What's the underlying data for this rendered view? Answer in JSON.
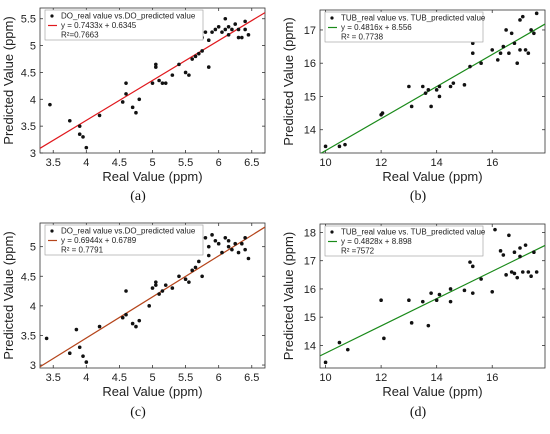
{
  "chart_data": [
    {
      "type": "scatter",
      "panel_label": "(a)",
      "xlabel": "Real Value (ppm)",
      "ylabel": "Predicted Value (ppm)",
      "xlim": [
        3.3,
        6.7
      ],
      "ylim": [
        3,
        5.7
      ],
      "xticks": [
        3.5,
        4,
        4.5,
        5,
        5.5,
        6,
        6.5
      ],
      "yticks": [
        3,
        3.5,
        4,
        4.5,
        5,
        5.5
      ],
      "legend_location": "top-left",
      "legend": [
        "DO_real value vs.DO_predicted value",
        "y = 0.7433x + 0.6345",
        "R²=0.7663"
      ],
      "fit": {
        "slope": 0.7433,
        "intercept": 0.6345,
        "color": "#e0191e"
      },
      "series": [
        {
          "x": [
            3.45,
            3.75,
            3.9,
            3.9,
            3.95,
            4.0,
            4.2,
            4.55,
            4.6,
            4.6,
            4.7,
            4.75,
            4.8,
            5.0,
            5.05,
            5.05,
            5.1,
            5.15,
            5.2,
            5.3,
            5.4,
            5.5,
            5.55,
            5.6,
            5.65,
            5.7,
            5.75,
            5.75,
            5.8,
            5.85,
            5.85,
            5.9,
            5.95,
            6.0,
            6.05,
            6.1,
            6.1,
            6.15,
            6.15,
            6.2,
            6.25,
            6.3,
            6.3,
            6.35,
            6.4,
            6.4,
            6.45
          ],
          "y": [
            3.9,
            3.6,
            3.5,
            3.35,
            3.3,
            3.1,
            3.7,
            3.95,
            4.1,
            4.3,
            3.85,
            3.75,
            4.0,
            4.3,
            4.65,
            4.6,
            4.35,
            4.3,
            4.3,
            4.45,
            4.65,
            4.5,
            4.45,
            4.75,
            4.8,
            4.85,
            4.9,
            5.15,
            5.25,
            5.1,
            4.6,
            5.25,
            5.3,
            5.35,
            5.25,
            5.3,
            5.5,
            5.2,
            5.35,
            5.3,
            5.4,
            5.15,
            5.3,
            5.15,
            5.3,
            5.45,
            5.2
          ]
        }
      ]
    },
    {
      "type": "scatter",
      "panel_label": "(b)",
      "xlabel": "Real Value (ppm)",
      "ylabel": "Predicted Value (ppm)",
      "xlim": [
        9.8,
        17.9
      ],
      "ylim": [
        13.3,
        17.6
      ],
      "xticks": [
        10,
        12,
        14,
        16
      ],
      "yticks": [
        14,
        15,
        16,
        17
      ],
      "legend_location": "top-left",
      "legend": [
        "TUB_real value vs. TUB_predicted value",
        "y = 0.4816x + 8.556",
        "R² = 0.7738"
      ],
      "fit": {
        "slope": 0.4816,
        "intercept": 8.556,
        "color": "#1a8a1a"
      },
      "series": [
        {
          "x": [
            10.0,
            10.5,
            10.7,
            12.0,
            12.05,
            13.0,
            13.1,
            13.5,
            13.6,
            13.7,
            13.8,
            14.0,
            14.1,
            14.1,
            14.5,
            14.6,
            15.0,
            15.2,
            15.3,
            15.3,
            15.6,
            16.0,
            16.2,
            16.3,
            16.4,
            16.5,
            16.6,
            16.7,
            16.8,
            16.9,
            17.0,
            17.0,
            17.1,
            17.2,
            17.3,
            17.4,
            17.5,
            17.6
          ],
          "y": [
            13.5,
            13.5,
            13.55,
            14.45,
            14.5,
            15.3,
            14.7,
            15.3,
            15.1,
            15.2,
            14.7,
            15.2,
            15.3,
            15.0,
            15.3,
            15.4,
            15.35,
            15.9,
            16.3,
            16.6,
            16.0,
            16.4,
            16.1,
            16.3,
            16.5,
            17.0,
            16.3,
            16.9,
            16.6,
            16.0,
            17.3,
            16.4,
            17.4,
            16.4,
            16.3,
            17.0,
            16.9,
            17.5
          ]
        }
      ]
    },
    {
      "type": "scatter",
      "panel_label": "(c)",
      "xlabel": "Real Value (ppm)",
      "ylabel": "Predicted Value (ppm)",
      "xlim": [
        3.3,
        6.7
      ],
      "ylim": [
        2.95,
        5.4
      ],
      "xticks": [
        3.5,
        4,
        4.5,
        5,
        5.5,
        6,
        6.5
      ],
      "yticks": [
        3,
        3.5,
        4,
        4.5,
        5
      ],
      "legend_location": "top-left",
      "legend": [
        "DO_real value vs.DO_predicted value",
        "y = 0.6944x + 0.6789",
        "R² = 0.7791"
      ],
      "fit": {
        "slope": 0.6944,
        "intercept": 0.6789,
        "color": "#b5451b"
      },
      "series": [
        {
          "x": [
            3.4,
            3.75,
            3.85,
            3.9,
            3.95,
            4.0,
            4.2,
            4.55,
            4.6,
            4.6,
            4.7,
            4.75,
            4.8,
            4.95,
            5.0,
            5.05,
            5.05,
            5.1,
            5.15,
            5.2,
            5.3,
            5.4,
            5.5,
            5.55,
            5.6,
            5.65,
            5.7,
            5.75,
            5.8,
            5.85,
            5.85,
            5.9,
            5.95,
            6.0,
            6.05,
            6.1,
            6.15,
            6.15,
            6.2,
            6.25,
            6.3,
            6.35,
            6.4,
            6.4,
            6.45
          ],
          "y": [
            3.45,
            3.2,
            3.6,
            3.3,
            3.15,
            3.05,
            3.65,
            3.8,
            3.85,
            4.25,
            3.7,
            3.65,
            3.75,
            4.0,
            4.3,
            4.35,
            4.4,
            4.2,
            4.25,
            4.35,
            4.3,
            4.5,
            4.45,
            4.4,
            4.6,
            4.65,
            4.75,
            4.5,
            5.15,
            5.0,
            4.85,
            5.2,
            5.1,
            5.05,
            4.9,
            5.15,
            5.0,
            5.1,
            4.95,
            5.05,
            4.9,
            5.05,
            4.95,
            5.15,
            4.8
          ]
        }
      ]
    },
    {
      "type": "scatter",
      "panel_label": "(d)",
      "xlabel": "Real Value (ppm)",
      "ylabel": "Predicted Value (ppm)",
      "xlim": [
        9.8,
        17.9
      ],
      "ylim": [
        13.2,
        18.3
      ],
      "xticks": [
        10,
        12,
        14,
        16
      ],
      "yticks": [
        14,
        15,
        16,
        17,
        18
      ],
      "legend_location": "top-left",
      "legend": [
        "TUB_real value vs. TUB_predicted value",
        "y = 0.4828x + 8.898",
        "R² =7572"
      ],
      "fit": {
        "slope": 0.4828,
        "intercept": 8.898,
        "color": "#1a8a1a"
      },
      "series": [
        {
          "x": [
            10.0,
            10.5,
            10.8,
            12.0,
            12.1,
            13.0,
            13.1,
            13.5,
            13.7,
            13.8,
            14.0,
            14.1,
            14.5,
            14.5,
            15.0,
            15.2,
            15.3,
            15.3,
            15.6,
            16.0,
            16.1,
            16.3,
            16.4,
            16.5,
            16.6,
            16.7,
            16.8,
            16.8,
            16.9,
            17.0,
            17.0,
            17.1,
            17.2,
            17.3,
            17.4,
            17.5,
            17.6
          ],
          "y": [
            13.4,
            14.1,
            13.85,
            15.6,
            14.25,
            15.6,
            14.8,
            15.55,
            14.7,
            15.85,
            15.6,
            15.8,
            15.55,
            16.0,
            15.95,
            16.95,
            16.8,
            15.85,
            16.35,
            15.9,
            18.1,
            17.35,
            17.2,
            16.5,
            17.9,
            16.6,
            16.55,
            17.3,
            16.4,
            17.45,
            17.15,
            16.6,
            17.55,
            16.6,
            16.45,
            17.3,
            16.6
          ]
        }
      ]
    }
  ]
}
